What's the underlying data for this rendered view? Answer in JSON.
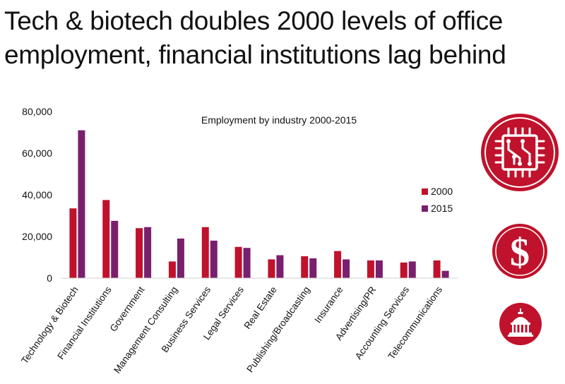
{
  "headline": {
    "line1": "Tech & biotech doubles 2000 levels of office",
    "line2": "employment, financial institutions lag behind"
  },
  "chart_data": {
    "type": "bar",
    "title": "Employment by industry 2000-2015",
    "xlabel": "",
    "ylabel": "",
    "ylim": [
      0,
      80000
    ],
    "yticks": [
      "0",
      "20,000",
      "40,000",
      "60,000",
      "80,000"
    ],
    "grid": false,
    "legend_position": "right",
    "categories": [
      "Technology & Biotech",
      "Financial Institutions",
      "Government",
      "Management Consulting",
      "Business Services",
      "Legal Services",
      "Real Estate",
      "Publishing/Broadcasting",
      "Insurance",
      "Advertising/PR",
      "Accounting Services",
      "Telecommunications"
    ],
    "series": [
      {
        "name": "2000",
        "color": "#c0122c",
        "values": [
          33500,
          37500,
          24000,
          8000,
          24500,
          15000,
          9000,
          10500,
          13000,
          8500,
          7500,
          8500
        ]
      },
      {
        "name": "2015",
        "color": "#7a1f6e",
        "values": [
          71000,
          27500,
          24500,
          19000,
          18000,
          14500,
          11000,
          9500,
          9000,
          8500,
          8000,
          3500
        ]
      }
    ]
  },
  "icons": {
    "circuit": "circuit-chip-icon",
    "dollar": "dollar-sign-icon",
    "capitol": "capitol-dome-icon",
    "badge_color": "#c0122c"
  }
}
